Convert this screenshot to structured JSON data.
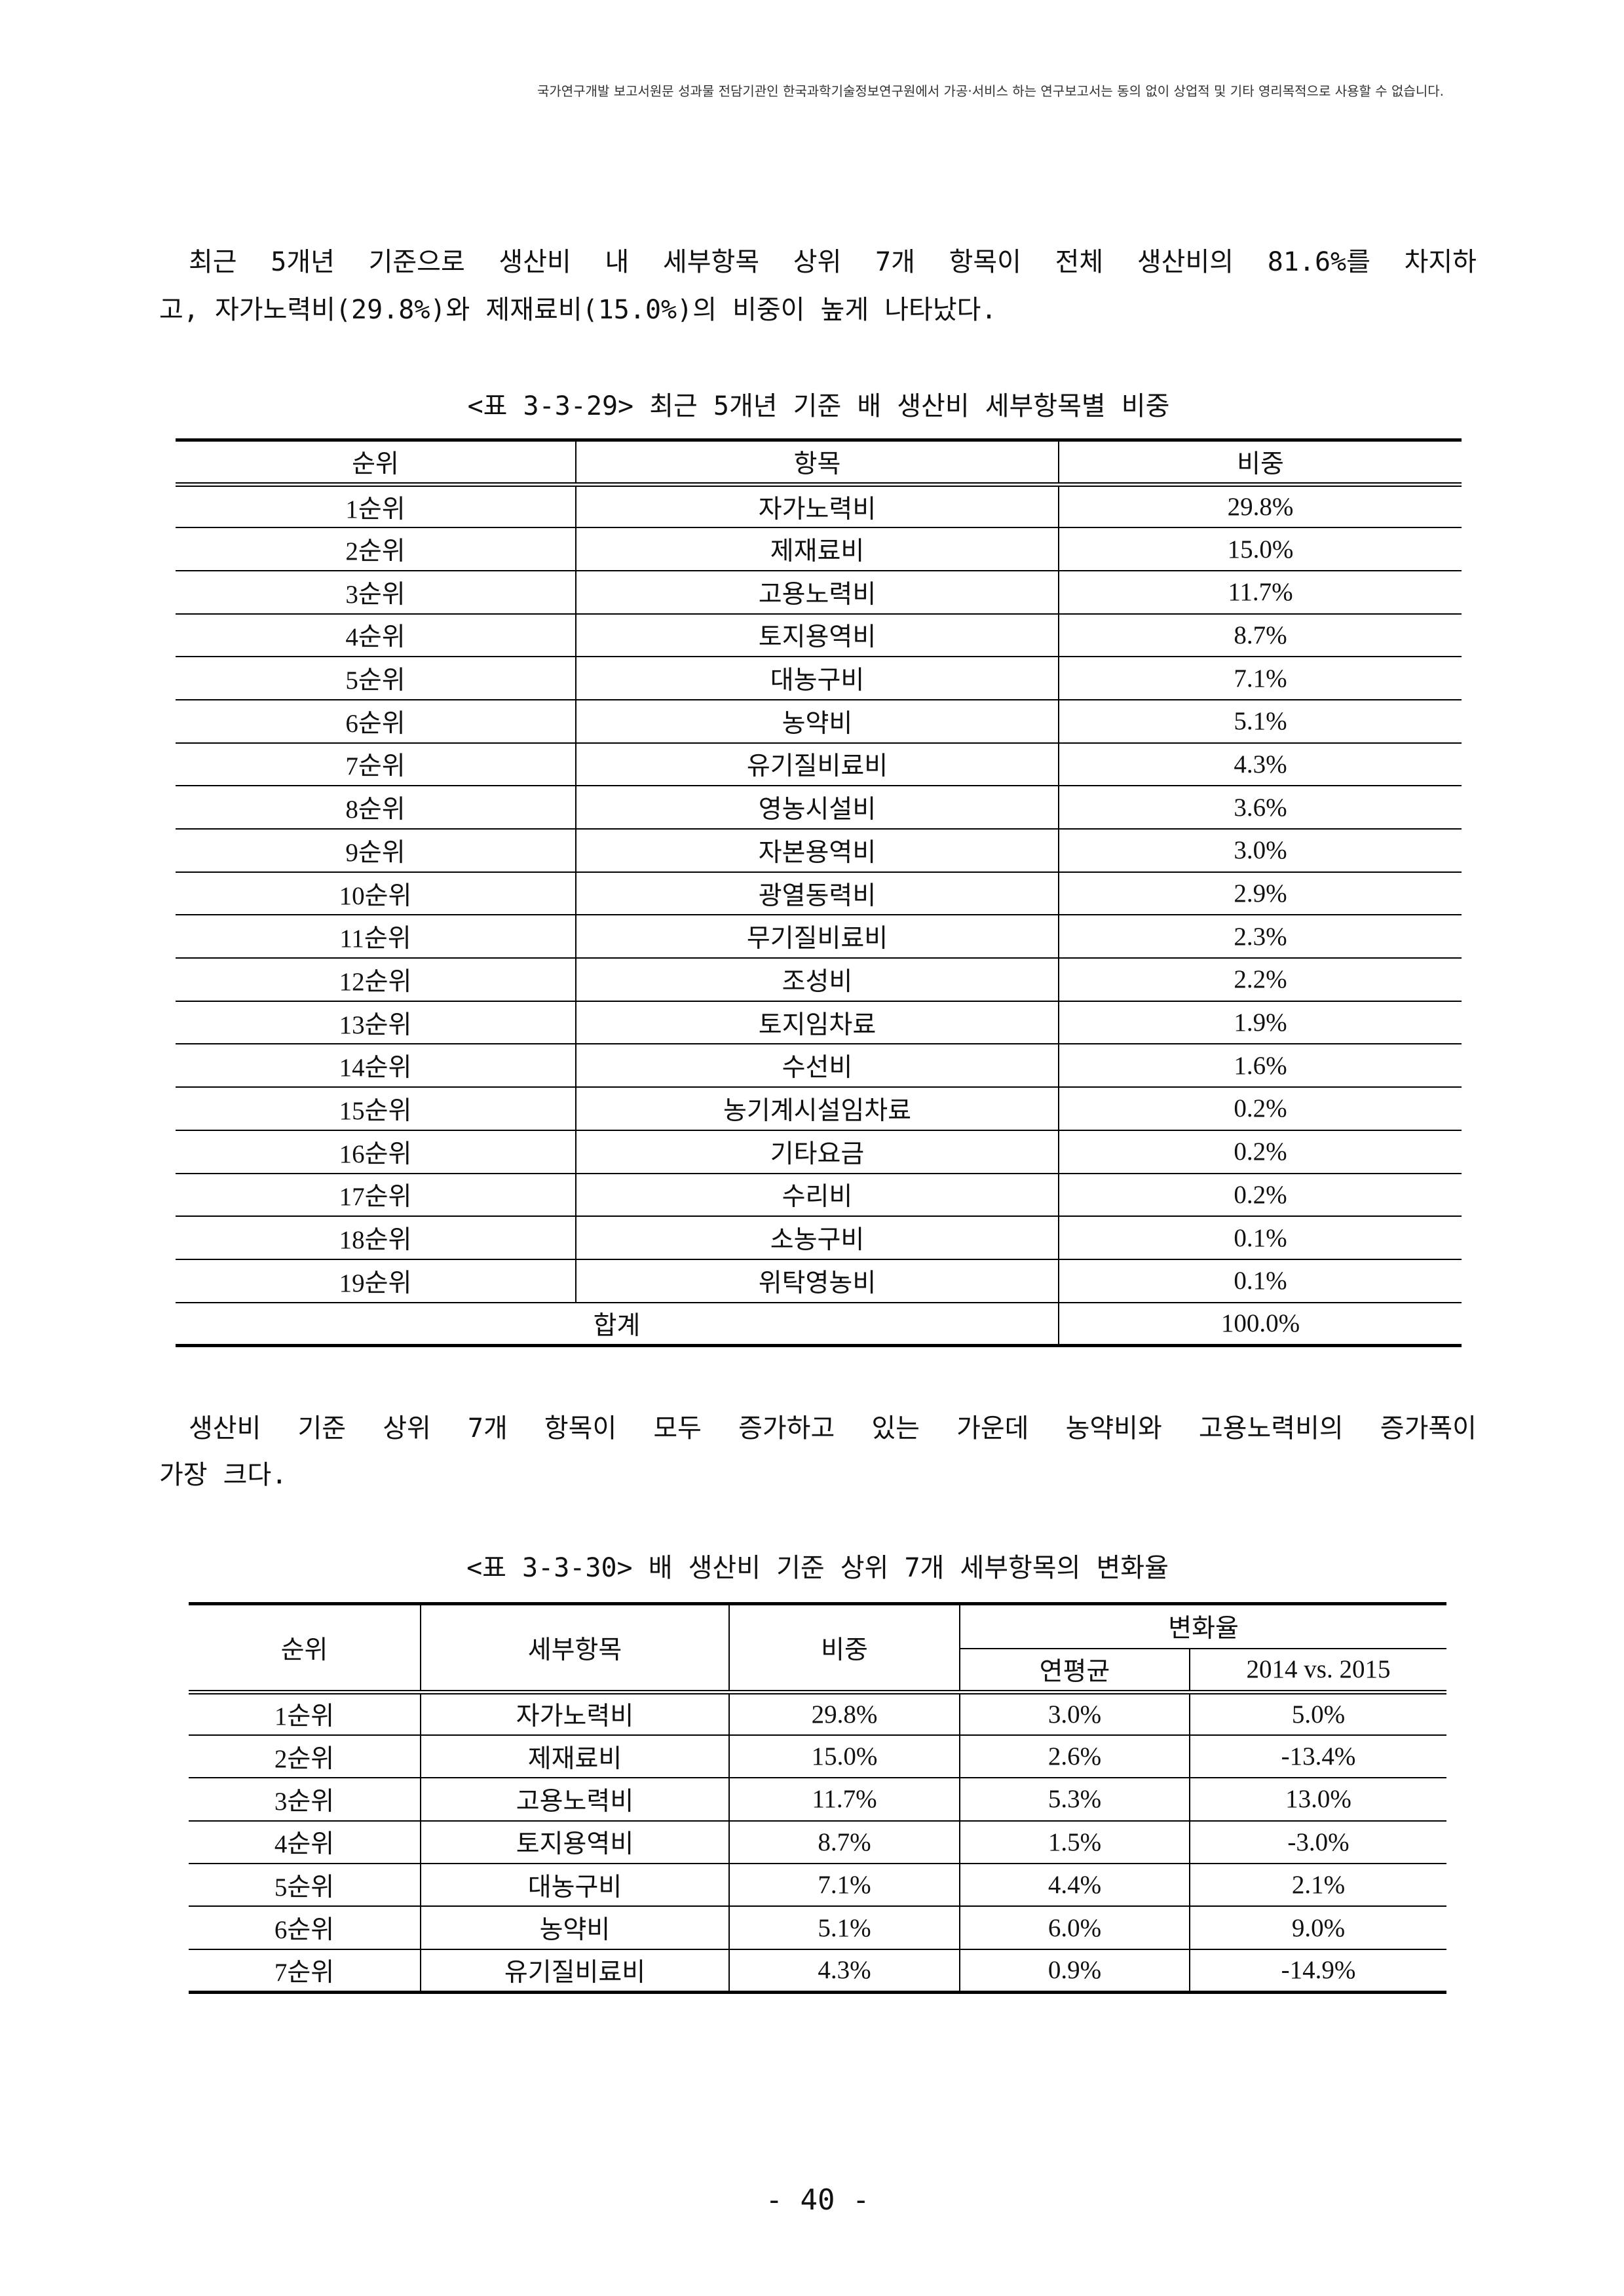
{
  "header_notice": "국가연구개발 보고서원문 성과물 전담기관인 한국과학기술정보연구원에서 가공·서비스 하는 연구보고서는 동의 없이 상업적 및 기타 영리목적으로 사용할 수 없습니다.",
  "paragraph1": {
    "line1": "최근 5개년 기준으로 생산비 내 세부항목 상위 7개 항목이 전체 생산비의 81.6%를 차지하",
    "line2": "고, 자가노력비(29.8%)와 제재료비(15.0%)의 비중이 높게 나타났다."
  },
  "table1": {
    "caption": "<표 3-3-29> 최근 5개년 기준 배 생산비 세부항목별 비중",
    "headers": {
      "rank": "순위",
      "item": "항목",
      "share": "비중"
    },
    "rows": [
      {
        "rank": "1순위",
        "item": "자가노력비",
        "share": "29.8%"
      },
      {
        "rank": "2순위",
        "item": "제재료비",
        "share": "15.0%"
      },
      {
        "rank": "3순위",
        "item": "고용노력비",
        "share": "11.7%"
      },
      {
        "rank": "4순위",
        "item": "토지용역비",
        "share": "8.7%"
      },
      {
        "rank": "5순위",
        "item": "대농구비",
        "share": "7.1%"
      },
      {
        "rank": "6순위",
        "item": "농약비",
        "share": "5.1%"
      },
      {
        "rank": "7순위",
        "item": "유기질비료비",
        "share": "4.3%"
      },
      {
        "rank": "8순위",
        "item": "영농시설비",
        "share": "3.6%"
      },
      {
        "rank": "9순위",
        "item": "자본용역비",
        "share": "3.0%"
      },
      {
        "rank": "10순위",
        "item": "광열동력비",
        "share": "2.9%"
      },
      {
        "rank": "11순위",
        "item": "무기질비료비",
        "share": "2.3%"
      },
      {
        "rank": "12순위",
        "item": "조성비",
        "share": "2.2%"
      },
      {
        "rank": "13순위",
        "item": "토지임차료",
        "share": "1.9%"
      },
      {
        "rank": "14순위",
        "item": "수선비",
        "share": "1.6%"
      },
      {
        "rank": "15순위",
        "item": "농기계시설임차료",
        "share": "0.2%"
      },
      {
        "rank": "16순위",
        "item": "기타요금",
        "share": "0.2%"
      },
      {
        "rank": "17순위",
        "item": "수리비",
        "share": "0.2%"
      },
      {
        "rank": "18순위",
        "item": "소농구비",
        "share": "0.1%"
      },
      {
        "rank": "19순위",
        "item": "위탁영농비",
        "share": "0.1%"
      }
    ],
    "total": {
      "label": "합계",
      "share": "100.0%"
    }
  },
  "paragraph2": {
    "line1": "생산비 기준 상위 7개 항목이 모두 증가하고 있는 가운데 농약비와 고용노력비의 증가폭이",
    "line2": "가장 크다."
  },
  "table2": {
    "caption": "<표 3-3-30> 배 생산비 기준 상위 7개 세부항목의 변화율",
    "headers": {
      "rank": "순위",
      "item": "세부항목",
      "share": "비중",
      "change_rate": "변화율",
      "annual_avg": "연평균",
      "yoy": "2014 vs. 2015"
    },
    "rows": [
      {
        "rank": "1순위",
        "item": "자가노력비",
        "share": "29.8%",
        "annual_avg": "3.0%",
        "yoy": "5.0%"
      },
      {
        "rank": "2순위",
        "item": "제재료비",
        "share": "15.0%",
        "annual_avg": "2.6%",
        "yoy": "-13.4%"
      },
      {
        "rank": "3순위",
        "item": "고용노력비",
        "share": "11.7%",
        "annual_avg": "5.3%",
        "yoy": "13.0%"
      },
      {
        "rank": "4순위",
        "item": "토지용역비",
        "share": "8.7%",
        "annual_avg": "1.5%",
        "yoy": "-3.0%"
      },
      {
        "rank": "5순위",
        "item": "대농구비",
        "share": "7.1%",
        "annual_avg": "4.4%",
        "yoy": "2.1%"
      },
      {
        "rank": "6순위",
        "item": "농약비",
        "share": "5.1%",
        "annual_avg": "6.0%",
        "yoy": "9.0%"
      },
      {
        "rank": "7순위",
        "item": "유기질비료비",
        "share": "4.3%",
        "annual_avg": "0.9%",
        "yoy": "-14.9%"
      }
    ]
  },
  "page_number": "- 40 -"
}
